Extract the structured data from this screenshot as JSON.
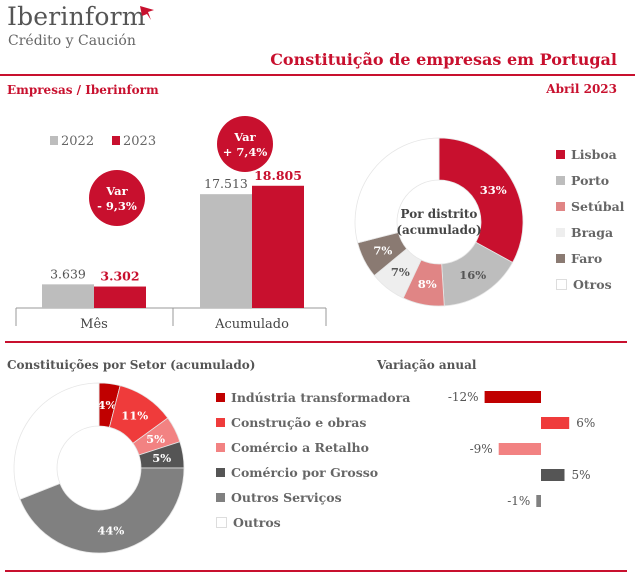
{
  "brand": {
    "name": "Iberinform",
    "subtitle": "Crédito y Caución"
  },
  "title": "Constituição de empresas em Portugal",
  "source_label": "Empresas / Iberinform",
  "date_label": "Abril 2023",
  "colors": {
    "accent": "#c8102e",
    "gray": "#bdbdbd"
  },
  "chart_data": [
    {
      "type": "bar",
      "categories": [
        "Mês",
        "Acumulado"
      ],
      "series": [
        {
          "name": "2022",
          "values": [
            3639,
            17513
          ],
          "labels": [
            "3.639",
            "17.513"
          ],
          "color": "#bdbdbd"
        },
        {
          "name": "2023",
          "values": [
            3302,
            18805
          ],
          "labels": [
            "3.302",
            "18.805"
          ],
          "color": "#c8102e"
        }
      ],
      "ylim": [
        0,
        20000
      ],
      "annotations": [
        {
          "line1": "Var",
          "line2": "- 9,3%"
        },
        {
          "line1": "Var",
          "line2": "+ 7,4%"
        }
      ]
    },
    {
      "type": "pie",
      "center_label": [
        "Por distrito",
        "(acumulado)"
      ],
      "labels": [
        "Lisboa",
        "Porto",
        "Setúbal",
        "Braga",
        "Faro",
        "Otros"
      ],
      "values": [
        33,
        16,
        8,
        7,
        7,
        29
      ],
      "value_labels": [
        "33%",
        "16%",
        "8%",
        "7%",
        "7%",
        ""
      ],
      "colors": [
        "#c8102e",
        "#bdbdbd",
        "#e08585",
        "#eeeeee",
        "#8a7a72",
        "#ffffff"
      ],
      "legend": "right"
    },
    {
      "type": "pie",
      "title": "Constituições por Setor (acumulado)",
      "labels": [
        "Indústria transformadora",
        "Construção e obras",
        "Comércio a Retalho",
        "Comércio por Grosso",
        "Outros Serviços",
        "Outros"
      ],
      "values": [
        4,
        11,
        5,
        5,
        44,
        31
      ],
      "value_labels": [
        "4%",
        "11%",
        "5%",
        "5%",
        "44%",
        ""
      ],
      "colors": [
        "#c00000",
        "#ef3b3b",
        "#f28282",
        "#555555",
        "#808080",
        "#ffffff"
      ],
      "legend": "right"
    },
    {
      "type": "bar",
      "orientation": "horizontal",
      "title": "Variação anual",
      "categories": [
        "Indústria transformadora",
        "Construção e obras",
        "Comércio a Retalho",
        "Comércio por Grosso",
        "Outros Serviços"
      ],
      "values": [
        -12,
        6,
        -9,
        5,
        -1
      ],
      "value_labels": [
        "-12%",
        "6%",
        "-9%",
        "5%",
        "-1%"
      ],
      "colors": [
        "#c00000",
        "#ef3b3b",
        "#f28282",
        "#555555",
        "#808080"
      ]
    }
  ]
}
